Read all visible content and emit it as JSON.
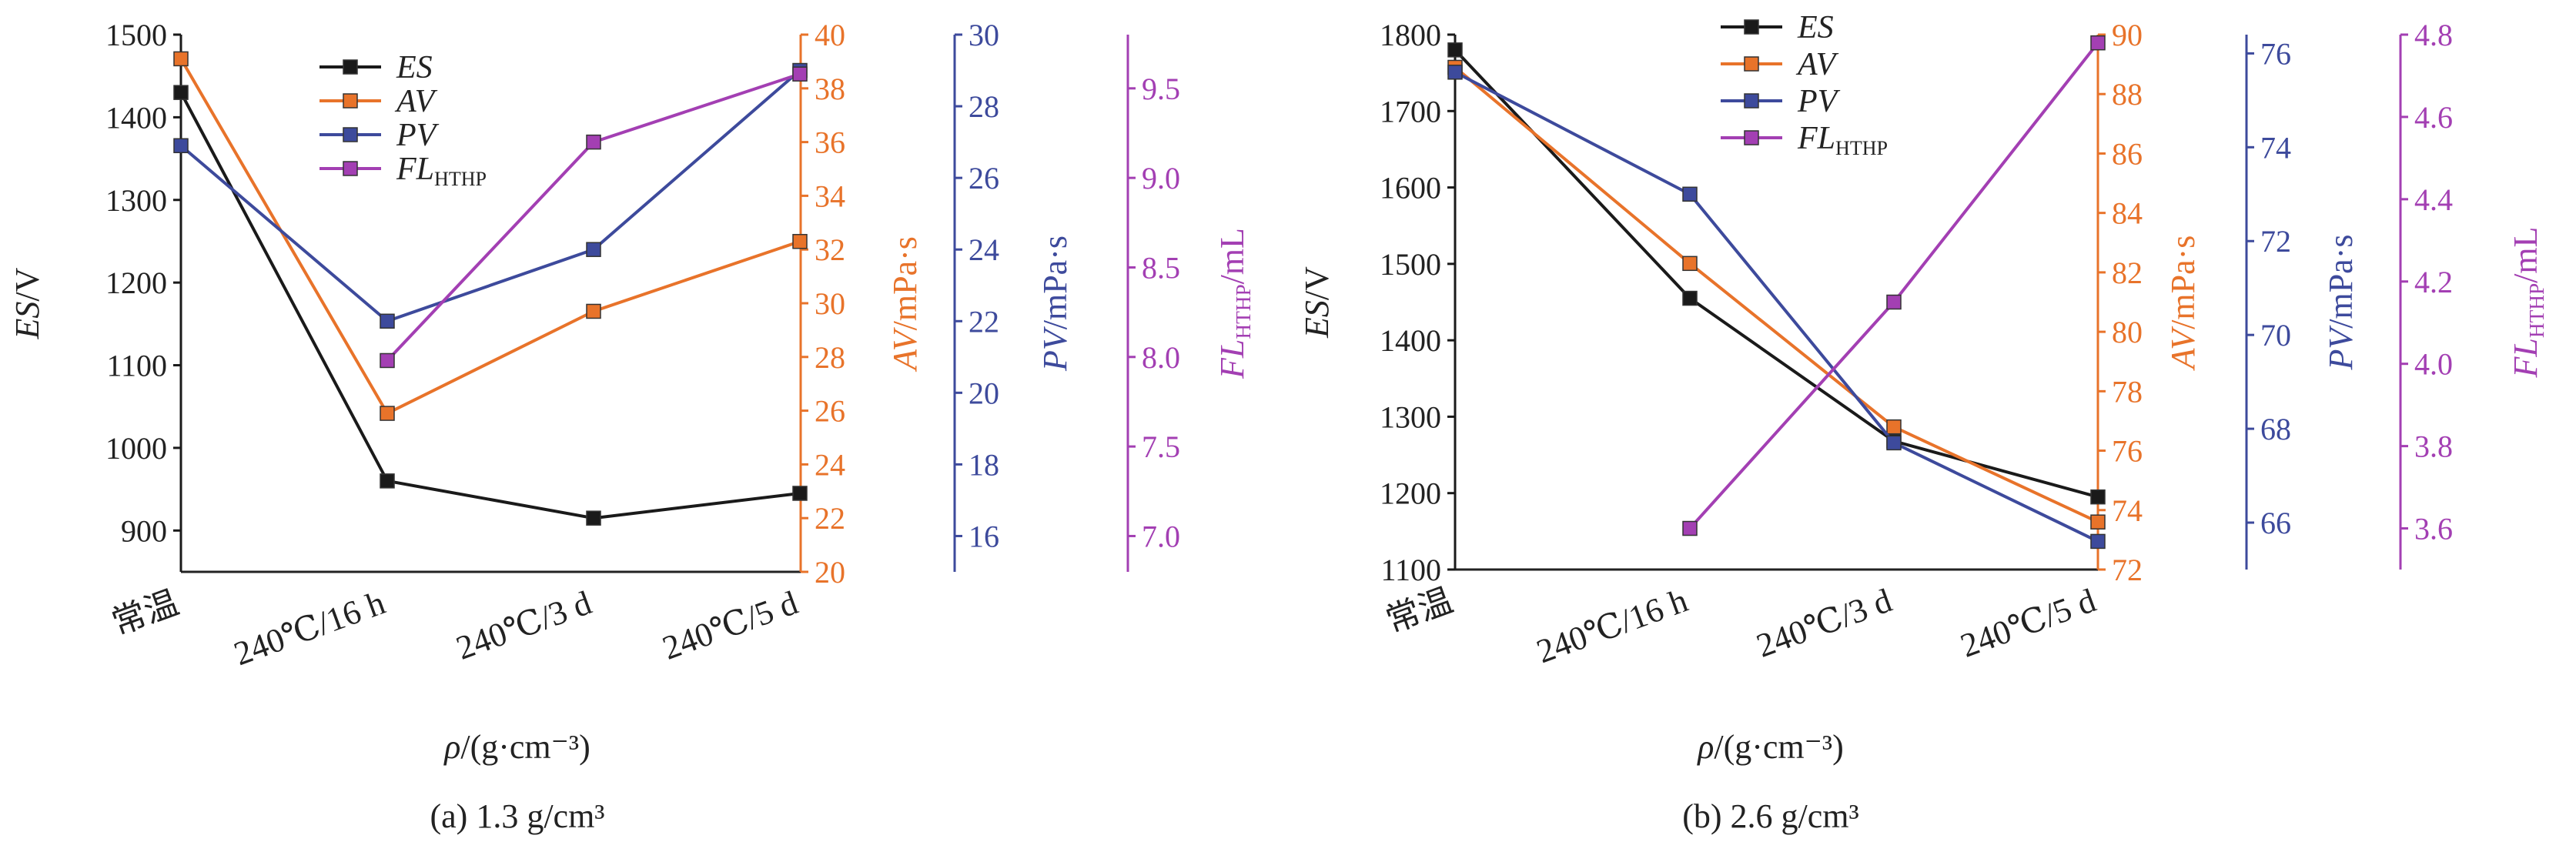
{
  "figure": {
    "panels": [
      {
        "caption": "(a) 1.3 g/cm³",
        "colors": {
          "ES": "#1a1a1a",
          "AV": "#e8732a",
          "PV": "#3d4a9c",
          "FL": "#a33fb3"
        }
      },
      {
        "caption": "(b) 2.6 g/cm³",
        "colors": {
          "ES": "#1a1a1a",
          "AV": "#e8732a",
          "PV": "#3d4a9c",
          "FL": "#a33fb3"
        }
      }
    ]
  },
  "chart_data": [
    {
      "type": "line",
      "caption": "(a) 1.3 g/cm³",
      "categories": [
        "常温",
        "240℃/16 h",
        "240℃/3 d",
        "240℃/5 d"
      ],
      "xlabel": "ρ/(g·cm⁻³)",
      "axes": [
        {
          "key": "ES",
          "label": "ES/V",
          "range": [
            850,
            1500
          ],
          "ticks": [
            900,
            1000,
            1100,
            1200,
            1300,
            1400,
            1500
          ],
          "side": "left"
        },
        {
          "key": "AV",
          "label": "AV/mPa·s",
          "range": [
            20,
            40
          ],
          "ticks": [
            20,
            22,
            24,
            26,
            28,
            30,
            32,
            34,
            36,
            38,
            40
          ],
          "side": "right"
        },
        {
          "key": "PV",
          "label": "PV/mPa·s",
          "range": [
            15,
            30
          ],
          "ticks": [
            16,
            18,
            20,
            22,
            24,
            26,
            28,
            30
          ],
          "side": "right"
        },
        {
          "key": "FL",
          "label": "FL_HTHP/mL",
          "range": [
            6.8,
            9.8
          ],
          "ticks": [
            7.0,
            7.5,
            8.0,
            8.5,
            9.0,
            9.5
          ],
          "tick_decimals": 1,
          "side": "right"
        }
      ],
      "series": [
        {
          "name": "ES",
          "axis": "ES",
          "values": [
            1430,
            960,
            915,
            945
          ]
        },
        {
          "name": "AV",
          "axis": "AV",
          "values": [
            39.1,
            25.9,
            29.7,
            32.3
          ]
        },
        {
          "name": "PV",
          "axis": "PV",
          "values": [
            26.9,
            22.0,
            24.0,
            29.0
          ]
        },
        {
          "name": "FL_HTHP",
          "axis": "FL",
          "values": [
            null,
            7.98,
            9.2,
            9.58
          ]
        }
      ],
      "legend": [
        "ES",
        "AV",
        "PV",
        "FL_HTHP"
      ],
      "legend_position": "top-left"
    },
    {
      "type": "line",
      "caption": "(b) 2.6 g/cm³",
      "categories": [
        "常温",
        "240℃/16 h",
        "240℃/3 d",
        "240℃/5 d"
      ],
      "xlabel": "ρ/(g·cm⁻³)",
      "axes": [
        {
          "key": "ES",
          "label": "ES/V",
          "range": [
            1100,
            1800
          ],
          "ticks": [
            1100,
            1200,
            1300,
            1400,
            1500,
            1600,
            1700,
            1800
          ],
          "side": "left"
        },
        {
          "key": "AV",
          "label": "AV/mPa·s",
          "range": [
            72,
            90
          ],
          "ticks": [
            72,
            74,
            76,
            78,
            80,
            82,
            84,
            86,
            88,
            90
          ],
          "side": "right"
        },
        {
          "key": "PV",
          "label": "PV/mPa·s",
          "range": [
            65,
            76.4
          ],
          "ticks": [
            66,
            68,
            70,
            72,
            74,
            76
          ],
          "side": "right"
        },
        {
          "key": "FL",
          "label": "FL_HTHP/mL",
          "range": [
            3.5,
            4.8
          ],
          "ticks": [
            3.6,
            3.8,
            4.0,
            4.2,
            4.4,
            4.6,
            4.8
          ],
          "tick_decimals": 1,
          "side": "right"
        }
      ],
      "series": [
        {
          "name": "ES",
          "axis": "ES",
          "values": [
            1780,
            1455,
            1268,
            1195
          ]
        },
        {
          "name": "AV",
          "axis": "AV",
          "values": [
            88.9,
            82.3,
            76.8,
            73.6
          ]
        },
        {
          "name": "PV",
          "axis": "PV",
          "values": [
            75.6,
            73.0,
            67.7,
            65.6
          ]
        },
        {
          "name": "FL_HTHP",
          "axis": "FL",
          "values": [
            null,
            3.6,
            4.15,
            4.78
          ]
        }
      ],
      "legend": [
        "ES",
        "AV",
        "PV",
        "FL_HTHP"
      ],
      "legend_position": "top-center"
    }
  ]
}
